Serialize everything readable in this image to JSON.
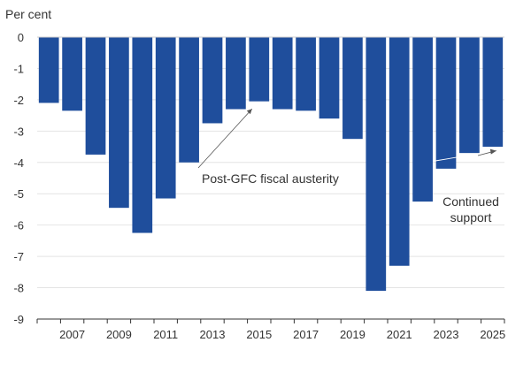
{
  "chart_data": {
    "type": "bar",
    "ylabel": "Per cent",
    "ylim": [
      -9,
      0
    ],
    "yticks": [
      0,
      -1,
      -2,
      -3,
      -4,
      -5,
      -6,
      -7,
      -8,
      -9
    ],
    "grid": true,
    "bar_color": "#1f4e9c",
    "categories": [
      "2006",
      "2007",
      "2008",
      "2009",
      "2010",
      "2011",
      "2012",
      "2013",
      "2014",
      "2015",
      "2016",
      "2017",
      "2018",
      "2019",
      "2020",
      "2021",
      "2022",
      "2023",
      "2024",
      "2025"
    ],
    "x_tick_labels": [
      "2007",
      "2009",
      "2011",
      "2013",
      "2015",
      "2017",
      "2019",
      "2021",
      "2023",
      "2025"
    ],
    "values": [
      -2.1,
      -2.35,
      -3.75,
      -5.45,
      -6.25,
      -5.15,
      -4.0,
      -2.75,
      -2.3,
      -2.05,
      -2.3,
      -2.35,
      -2.6,
      -3.25,
      -8.1,
      -7.3,
      -5.25,
      -4.2,
      -3.7,
      -3.5
    ],
    "annotations": [
      {
        "lines": [
          "Post-GFC fiscal austerity"
        ],
        "target_year": "2015",
        "target_value": -2.15
      },
      {
        "lines": [
          "Continued",
          "support"
        ],
        "target_year": "2025",
        "target_value": -3.6
      }
    ]
  }
}
